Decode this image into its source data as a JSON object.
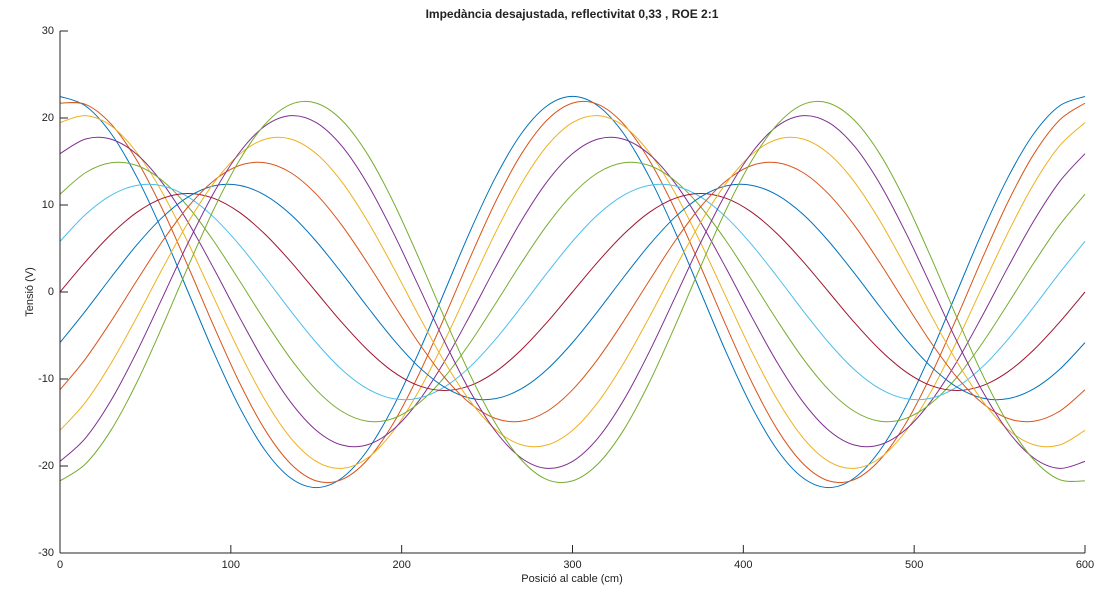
{
  "chart_data": {
    "type": "line",
    "title": "Impedància desajustada, reflectivitat 0,33 , ROE 2:1",
    "x_label": "Posició al cable (cm)",
    "y_label": "Tensió (V)",
    "xlim": [
      0,
      600
    ],
    "xticks": [
      0,
      100,
      200,
      300,
      400,
      500,
      600
    ],
    "ylim": [
      -30,
      30
    ],
    "yticks": [
      -30,
      -20,
      -10,
      0,
      10,
      20,
      30
    ],
    "x": [
      0,
      15,
      30,
      45,
      60,
      75,
      90,
      105,
      120,
      135,
      150,
      165,
      180,
      195,
      210,
      225,
      240,
      255,
      270,
      285,
      300,
      315,
      330,
      345,
      360,
      375,
      390,
      405,
      420,
      435,
      450,
      465,
      480,
      495,
      510,
      525,
      540,
      555,
      570,
      585,
      600
    ],
    "series": [
      {
        "color": "#0072bd",
        "values": [
          22.48,
          21.38,
          18.19,
          13.21,
          6.95,
          0,
          -6.95,
          -13.21,
          -18.19,
          -21.38,
          -22.48,
          -21.38,
          -18.19,
          -13.21,
          -6.95,
          0,
          6.95,
          13.21,
          18.19,
          21.38,
          22.48,
          21.38,
          18.19,
          13.21,
          6.95,
          0,
          -6.95,
          -13.21,
          -18.19,
          -21.38,
          -22.48,
          -21.38,
          -18.19,
          -13.21,
          -6.95,
          0,
          6.95,
          13.21,
          18.19,
          21.38,
          22.48
        ]
      },
      {
        "color": "#d95319",
        "values": [
          21.71,
          21.56,
          19.28,
          15.13,
          9.5,
          2.93,
          -3.92,
          -10.39,
          -15.84,
          -19.74,
          -21.71,
          -21.56,
          -19.28,
          -15.13,
          -9.5,
          -2.93,
          3.92,
          10.39,
          15.84,
          19.74,
          21.71,
          21.56,
          19.28,
          15.13,
          9.5,
          2.93,
          -3.92,
          -10.39,
          -15.84,
          -19.74,
          -21.71,
          -21.56,
          -19.28,
          -15.13,
          -9.5,
          -2.93,
          3.92,
          10.39,
          15.84,
          19.74,
          21.71
        ]
      },
      {
        "color": "#edb120",
        "values": [
          19.47,
          20.27,
          19.08,
          16.02,
          11.4,
          5.66,
          -0.64,
          -6.86,
          -12.42,
          -16.77,
          -19.47,
          -20.27,
          -19.08,
          -16.02,
          -11.4,
          -5.66,
          0.64,
          6.86,
          12.42,
          16.77,
          19.47,
          20.27,
          19.08,
          16.02,
          11.4,
          5.66,
          -0.64,
          -6.86,
          -12.42,
          -16.77,
          -19.47,
          -20.27,
          -19.08,
          -16.02,
          -11.4,
          -5.66,
          0.64,
          6.86,
          12.42,
          16.77,
          19.47
        ]
      },
      {
        "color": "#7e2f8e",
        "values": [
          15.9,
          17.59,
          17.56,
          15.82,
          12.52,
          8,
          2.7,
          -2.88,
          -8.16,
          -12.65,
          -15.9,
          -17.59,
          -17.56,
          -15.82,
          -12.52,
          -8,
          -2.7,
          2.88,
          8.16,
          12.65,
          15.9,
          17.59,
          17.56,
          15.82,
          12.52,
          8,
          2.7,
          -2.88,
          -8.16,
          -12.65,
          -15.9,
          -17.59,
          -17.56,
          -15.82,
          -12.52,
          -8,
          -2.7,
          2.88,
          8.16,
          12.65,
          15.9
        ]
      },
      {
        "color": "#77ac30",
        "values": [
          11.24,
          13.72,
          14.85,
          14.54,
          12.79,
          9.8,
          5.85,
          1.32,
          -3.33,
          -7.66,
          -11.24,
          -13.72,
          -14.85,
          -14.54,
          -12.79,
          -9.8,
          -5.85,
          -1.32,
          3.33,
          7.66,
          11.24,
          13.72,
          14.85,
          14.54,
          12.79,
          9.8,
          5.85,
          1.32,
          -3.33,
          -7.66,
          -11.24,
          -13.72,
          -14.85,
          -14.54,
          -12.79,
          -9.8,
          -5.85,
          -1.32,
          3.33,
          7.66,
          11.24
        ]
      },
      {
        "color": "#4dbeee",
        "values": [
          5.82,
          8.92,
          11.13,
          12.26,
          12.2,
          10.93,
          8.6,
          5.42,
          1.71,
          -2.16,
          -5.82,
          -8.92,
          -11.13,
          -12.26,
          -12.2,
          -10.93,
          -8.6,
          -5.42,
          -1.71,
          2.16,
          5.82,
          8.92,
          11.13,
          12.26,
          12.2,
          10.93,
          8.6,
          5.42,
          1.71,
          -2.16,
          -5.82,
          -8.92,
          -11.13,
          -12.26,
          -12.2,
          -10.93,
          -8.6,
          -5.42,
          -1.71,
          2.16,
          5.82
        ]
      },
      {
        "color": "#a2142f",
        "values": [
          0,
          3.5,
          6.65,
          9.16,
          10.77,
          11.32,
          10.77,
          9.16,
          6.65,
          3.5,
          0,
          -3.5,
          -6.65,
          -9.16,
          -10.77,
          -11.32,
          -10.77,
          -9.16,
          -6.65,
          -3.5,
          0,
          3.5,
          6.65,
          9.16,
          10.77,
          11.32,
          10.77,
          9.16,
          6.65,
          3.5,
          0,
          -3.5,
          -6.65,
          -9.16,
          -10.77,
          -11.32,
          -10.77,
          -9.16,
          -6.65,
          -3.5,
          0
        ]
      },
      {
        "color": "#0072bd",
        "values": [
          -5.82,
          -2.16,
          1.71,
          5.42,
          8.6,
          10.93,
          12.2,
          12.26,
          11.13,
          8.92,
          5.82,
          2.16,
          -1.71,
          -5.42,
          -8.6,
          -10.93,
          -12.2,
          -12.26,
          -11.13,
          -8.92,
          -5.82,
          -2.16,
          1.71,
          5.42,
          8.6,
          10.93,
          12.2,
          12.26,
          11.13,
          8.92,
          5.82,
          2.16,
          -1.71,
          -5.42,
          -8.6,
          -10.93,
          -12.2,
          -12.26,
          -11.13,
          -8.92,
          -5.82
        ]
      },
      {
        "color": "#d95319",
        "values": [
          -11.24,
          -7.66,
          -3.33,
          1.32,
          5.85,
          9.8,
          12.79,
          14.54,
          14.85,
          13.72,
          11.24,
          7.66,
          3.33,
          -1.32,
          -5.85,
          -9.8,
          -12.79,
          -14.54,
          -14.85,
          -13.72,
          -11.24,
          -7.66,
          -3.33,
          1.32,
          5.85,
          9.8,
          12.79,
          14.54,
          14.85,
          13.72,
          11.24,
          7.66,
          3.33,
          -1.32,
          -5.85,
          -9.8,
          -12.79,
          -14.54,
          -14.85,
          -13.72,
          -11.24
        ]
      },
      {
        "color": "#edb120",
        "values": [
          -15.9,
          -12.65,
          -8.16,
          -2.88,
          2.7,
          8,
          12.52,
          15.82,
          17.56,
          17.59,
          15.9,
          12.65,
          8.16,
          2.88,
          -2.7,
          -8,
          -12.52,
          -15.82,
          -17.56,
          -17.59,
          -15.9,
          -12.65,
          -8.16,
          -2.88,
          2.7,
          8,
          12.52,
          15.82,
          17.56,
          17.59,
          15.9,
          12.65,
          8.16,
          2.88,
          -2.7,
          -8,
          -12.52,
          -15.82,
          -17.56,
          -17.59,
          -15.9
        ]
      },
      {
        "color": "#7e2f8e",
        "values": [
          -19.47,
          -16.77,
          -12.42,
          -6.86,
          -0.64,
          5.66,
          11.4,
          16.02,
          19.08,
          20.27,
          19.47,
          16.77,
          12.42,
          6.86,
          0.64,
          -5.66,
          -11.4,
          -16.02,
          -19.08,
          -20.27,
          -19.47,
          -16.77,
          -12.42,
          -6.86,
          -0.64,
          5.66,
          11.4,
          16.02,
          19.08,
          20.27,
          19.47,
          16.77,
          12.42,
          6.86,
          0.64,
          -5.66,
          -11.4,
          -16.02,
          -19.08,
          -20.27,
          -19.47
        ]
      },
      {
        "color": "#77ac30",
        "values": [
          -21.71,
          -19.74,
          -15.84,
          -10.39,
          -3.92,
          2.93,
          9.5,
          15.13,
          19.28,
          21.56,
          21.71,
          19.74,
          15.84,
          10.39,
          3.92,
          -2.93,
          -9.5,
          -15.13,
          -19.28,
          -21.56,
          -21.71,
          -19.74,
          -15.84,
          -10.39,
          -3.92,
          2.93,
          9.5,
          15.13,
          19.28,
          21.56,
          21.71,
          19.74,
          15.84,
          10.39,
          3.92,
          -2.93,
          -9.5,
          -15.13,
          -19.28,
          -21.56,
          -21.71
        ]
      }
    ]
  }
}
